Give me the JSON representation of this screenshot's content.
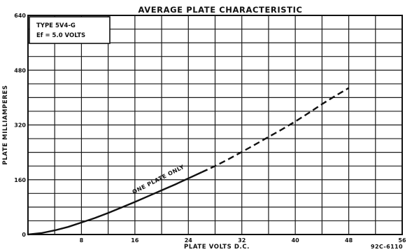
{
  "chart_data": {
    "type": "line",
    "title": "AVERAGE PLATE CHARACTERISTIC",
    "xlabel": "PLATE VOLTS D.C.",
    "ylabel": "PLATE MILLIAMPERES",
    "xlim": [
      0,
      56
    ],
    "ylim": [
      0,
      640
    ],
    "x_ticks": [
      "8",
      "16",
      "24",
      "32",
      "40",
      "48",
      "56"
    ],
    "y_ticks": [
      "0",
      "160",
      "320",
      "480",
      "640"
    ],
    "grid": true,
    "legend_box": [
      "TYPE 5V4-G",
      "Ef = 5.0 VOLTS"
    ],
    "annotation": "ONE PLATE ONLY",
    "code": "92C-6110",
    "series": [
      {
        "style": "solid",
        "x": [
          0,
          2,
          4,
          6,
          8,
          10,
          12,
          14,
          16,
          18,
          20,
          22,
          24,
          26
        ],
        "y": [
          0,
          4,
          12,
          22,
          35,
          48,
          63,
          79,
          95,
          112,
          129,
          146,
          164,
          182
        ]
      },
      {
        "style": "dashed",
        "x": [
          26,
          28,
          30,
          32,
          34,
          36,
          38,
          40,
          42,
          44,
          46,
          48
        ],
        "y": [
          182,
          200,
          220,
          241,
          263,
          285,
          307,
          330,
          355,
          381,
          405,
          428
        ]
      }
    ]
  }
}
